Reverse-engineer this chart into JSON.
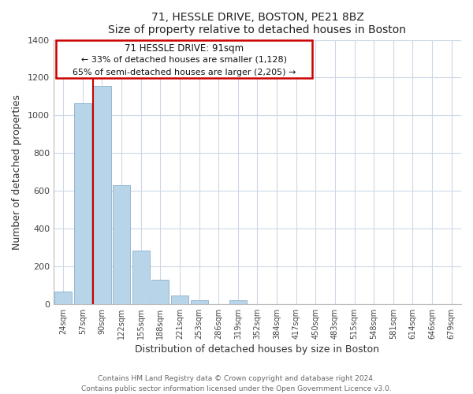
{
  "title1": "71, HESSLE DRIVE, BOSTON, PE21 8BZ",
  "title2": "Size of property relative to detached houses in Boston",
  "xlabel": "Distribution of detached houses by size in Boston",
  "ylabel": "Number of detached properties",
  "bar_labels": [
    "24sqm",
    "57sqm",
    "90sqm",
    "122sqm",
    "155sqm",
    "188sqm",
    "221sqm",
    "253sqm",
    "286sqm",
    "319sqm",
    "352sqm",
    "384sqm",
    "417sqm",
    "450sqm",
    "483sqm",
    "515sqm",
    "548sqm",
    "581sqm",
    "614sqm",
    "646sqm",
    "679sqm"
  ],
  "bar_values": [
    65,
    1065,
    1155,
    630,
    285,
    130,
    47,
    20,
    0,
    20,
    0,
    0,
    0,
    0,
    0,
    0,
    0,
    0,
    0,
    0,
    0
  ],
  "bar_color": "#b8d4e8",
  "bar_edge_color": "#8ab0cc",
  "annotation_title": "71 HESSLE DRIVE: 91sqm",
  "annotation_smaller": "← 33% of detached houses are smaller (1,128)",
  "annotation_larger": "65% of semi-detached houses are larger (2,205) →",
  "vline_color": "#cc0000",
  "box_edge_color": "#cc0000",
  "ylim": [
    0,
    1400
  ],
  "yticks": [
    0,
    200,
    400,
    600,
    800,
    1000,
    1200,
    1400
  ],
  "grid_color": "#ccd8e8",
  "footer1": "Contains HM Land Registry data © Crown copyright and database right 2024.",
  "footer2": "Contains public sector information licensed under the Open Government Licence v3.0."
}
